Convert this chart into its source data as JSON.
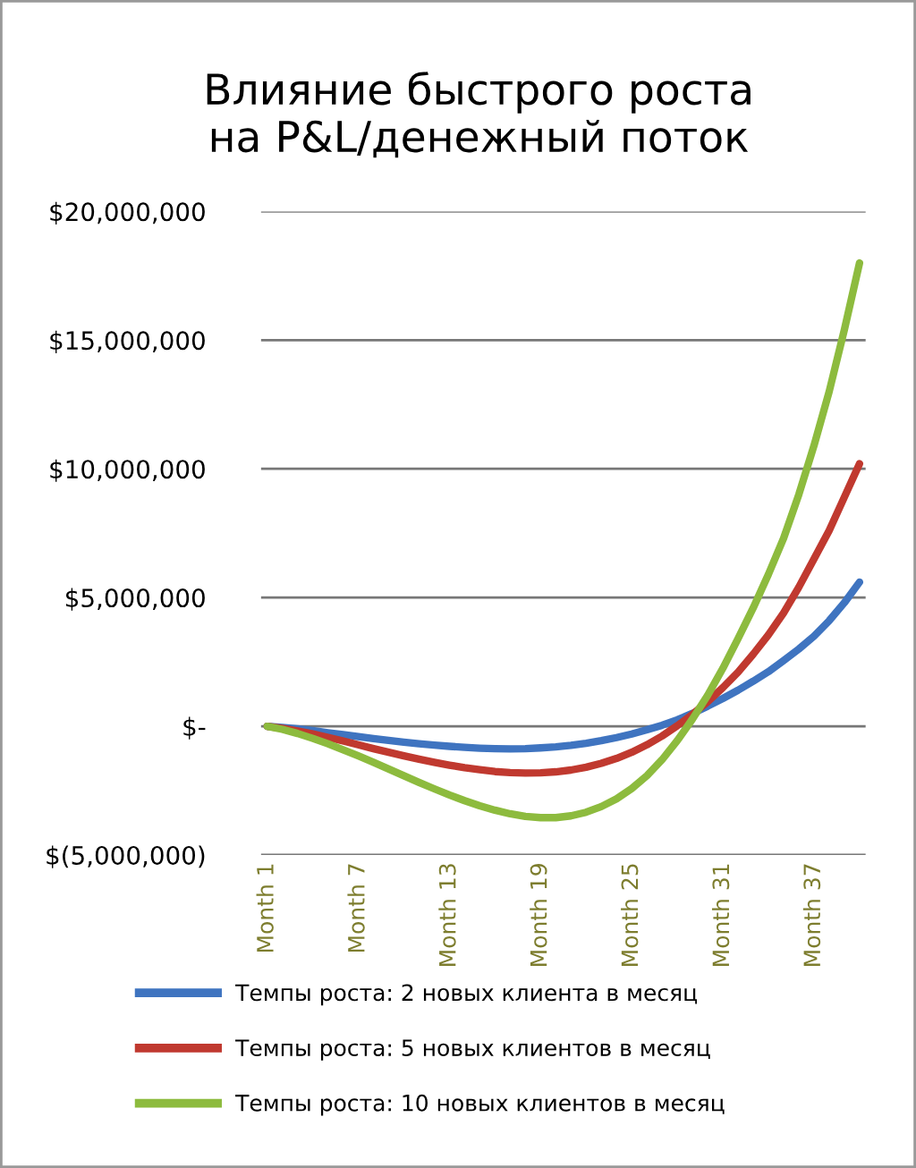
{
  "chart_data": {
    "type": "line",
    "title": "Влияние быстрого роста\nна P&L/денежный поток",
    "categories": [
      "Month 1",
      null,
      null,
      null,
      null,
      null,
      "Month 7",
      null,
      null,
      null,
      null,
      null,
      "Month 13",
      null,
      null,
      null,
      null,
      null,
      "Month 19",
      null,
      null,
      null,
      null,
      null,
      "Month 25",
      null,
      null,
      null,
      null,
      null,
      "Month 31",
      null,
      null,
      null,
      null,
      null,
      "Month 37",
      null,
      null,
      null
    ],
    "series": [
      {
        "name": "Темпы роста: 2 новых клиента в месяц",
        "color": "#3f74c0",
        "values": [
          0,
          -50000,
          -100000,
          -170000,
          -250000,
          -320000,
          -400000,
          -480000,
          -550000,
          -620000,
          -680000,
          -730000,
          -780000,
          -820000,
          -850000,
          -870000,
          -880000,
          -870000,
          -840000,
          -800000,
          -740000,
          -660000,
          -560000,
          -440000,
          -300000,
          -140000,
          40000,
          250000,
          500000,
          780000,
          1080000,
          1400000,
          1750000,
          2120000,
          2550000,
          3000000,
          3500000,
          4100000,
          4800000,
          5600000
        ]
      },
      {
        "name": "Темпы роста: 5 новых клиентов в месяц",
        "color": "#c0392f",
        "values": [
          0,
          -80000,
          -180000,
          -300000,
          -430000,
          -570000,
          -720000,
          -870000,
          -1010000,
          -1150000,
          -1280000,
          -1400000,
          -1510000,
          -1610000,
          -1690000,
          -1760000,
          -1800000,
          -1820000,
          -1810000,
          -1770000,
          -1700000,
          -1590000,
          -1440000,
          -1250000,
          -1010000,
          -720000,
          -380000,
          20000,
          460000,
          950000,
          1500000,
          2100000,
          2800000,
          3550000,
          4400000,
          5400000,
          6500000,
          7600000,
          8900000,
          10200000
        ]
      },
      {
        "name": "Темпы роста: 10 новых клиентов в месяц",
        "color": "#8dbb3e",
        "values": [
          0,
          -120000,
          -280000,
          -470000,
          -680000,
          -910000,
          -1150000,
          -1400000,
          -1660000,
          -1920000,
          -2180000,
          -2430000,
          -2670000,
          -2890000,
          -3090000,
          -3260000,
          -3400000,
          -3500000,
          -3550000,
          -3550000,
          -3480000,
          -3340000,
          -3120000,
          -2820000,
          -2420000,
          -1920000,
          -1300000,
          -560000,
          280000,
          1200000,
          2250000,
          3400000,
          4600000,
          5900000,
          7300000,
          9000000,
          10900000,
          13000000,
          15400000,
          18000000
        ]
      }
    ],
    "ylim": [
      -5000000,
      20000000
    ],
    "yticks": [
      {
        "value": -5000000,
        "label": "$(5,000,000)"
      },
      {
        "value": 0,
        "label": "$-"
      },
      {
        "value": 5000000,
        "label": "$5,000,000"
      },
      {
        "value": 10000000,
        "label": "$10,000,000"
      },
      {
        "value": 15000000,
        "label": "$15,000,000"
      },
      {
        "value": 20000000,
        "label": "$20,000,000"
      }
    ],
    "grid": "y",
    "legend": "bottom",
    "marker": "none",
    "line_style": "solid"
  }
}
